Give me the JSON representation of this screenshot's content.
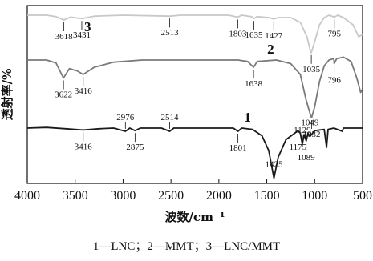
{
  "caption": "1—LNC；2—MMT；3—LNC/MMT",
  "chart_data": {
    "type": "line",
    "xlabel": "波数/cm⁻¹",
    "ylabel": "透射率/%",
    "xlim": [
      4000,
      500
    ],
    "x_ticks": [
      4000,
      3500,
      3000,
      2500,
      2000,
      1500,
      1000,
      500
    ],
    "colors": {
      "curve1": "#1a1a1a",
      "curve2": "#7a7a7a",
      "curve3": "#c8c8c8"
    },
    "series": [
      {
        "name": "1",
        "label_x": 1700,
        "baseline": 0.0,
        "points": [
          [
            4000,
            0.0
          ],
          [
            3800,
            0.01
          ],
          [
            3600,
            -0.01
          ],
          [
            3416,
            -0.03
          ],
          [
            3250,
            -0.01
          ],
          [
            3100,
            0.0
          ],
          [
            2976,
            -0.05
          ],
          [
            2930,
            0.0
          ],
          [
            2875,
            -0.04
          ],
          [
            2820,
            0.0
          ],
          [
            2600,
            0.0
          ],
          [
            2514,
            -0.05
          ],
          [
            2470,
            0.0
          ],
          [
            2000,
            0.0
          ],
          [
            1850,
            0.0
          ],
          [
            1801,
            -0.05
          ],
          [
            1760,
            0.0
          ],
          [
            1650,
            -0.02
          ],
          [
            1550,
            -0.12
          ],
          [
            1480,
            -0.35
          ],
          [
            1425,
            -0.78
          ],
          [
            1380,
            -0.45
          ],
          [
            1300,
            -0.18
          ],
          [
            1200,
            -0.07
          ],
          [
            1175,
            -0.04
          ],
          [
            1150,
            -0.08
          ],
          [
            1129,
            -0.25
          ],
          [
            1110,
            -0.1
          ],
          [
            1089,
            -0.2
          ],
          [
            1070,
            -0.08
          ],
          [
            1049,
            -0.13
          ],
          [
            1000,
            -0.04
          ],
          [
            900,
            -0.02
          ],
          [
            876,
            -0.3
          ],
          [
            860,
            -0.02
          ],
          [
            800,
            0.0
          ],
          [
            712,
            -0.05
          ],
          [
            700,
            0.0
          ],
          [
            600,
            0.0
          ],
          [
            500,
            0.0
          ]
        ],
        "annotations": [
          {
            "text": "3416",
            "x": 3416
          },
          {
            "text": "2976",
            "x": 2976
          },
          {
            "text": "2875",
            "x": 2875
          },
          {
            "text": "2514",
            "x": 2514
          },
          {
            "text": "1801",
            "x": 1801
          },
          {
            "text": "1425",
            "x": 1425
          },
          {
            "text": "1175",
            "x": 1175
          },
          {
            "text": "1129",
            "x": 1129
          },
          {
            "text": "1089",
            "x": 1089
          },
          {
            "text": "1049",
            "x": 1049
          }
        ]
      },
      {
        "name": "2",
        "label_x": 1460,
        "baseline": 0.0,
        "points": [
          [
            4000,
            0.0
          ],
          [
            3800,
            0.0
          ],
          [
            3700,
            -0.04
          ],
          [
            3622,
            -0.25
          ],
          [
            3560,
            -0.12
          ],
          [
            3480,
            -0.15
          ],
          [
            3416,
            -0.2
          ],
          [
            3300,
            -0.1
          ],
          [
            3100,
            -0.03
          ],
          [
            2800,
            0.0
          ],
          [
            2300,
            0.0
          ],
          [
            1800,
            0.0
          ],
          [
            1700,
            -0.02
          ],
          [
            1638,
            -0.1
          ],
          [
            1600,
            -0.02
          ],
          [
            1400,
            0.0
          ],
          [
            1250,
            -0.05
          ],
          [
            1150,
            -0.2
          ],
          [
            1090,
            -0.55
          ],
          [
            1040,
            -0.78
          ],
          [
            1032,
            -0.8
          ],
          [
            1000,
            -0.65
          ],
          [
            950,
            -0.3
          ],
          [
            900,
            -0.08
          ],
          [
            850,
            0.0
          ],
          [
            800,
            0.02
          ],
          [
            796,
            -0.05
          ],
          [
            770,
            0.02
          ],
          [
            700,
            0.04
          ],
          [
            620,
            -0.02
          ],
          [
            560,
            -0.25
          ],
          [
            520,
            -0.45
          ],
          [
            500,
            -0.4
          ]
        ],
        "annotations": [
          {
            "text": "3622",
            "x": 3622
          },
          {
            "text": "3416",
            "x": 3416
          },
          {
            "text": "1638",
            "x": 1638
          },
          {
            "text": "1032",
            "x": 1032
          },
          {
            "text": "796",
            "x": 796
          }
        ]
      },
      {
        "name": "3",
        "label_x": 3370,
        "baseline": 0.0,
        "points": [
          [
            4000,
            0.0
          ],
          [
            3800,
            0.0
          ],
          [
            3700,
            -0.03
          ],
          [
            3618,
            -0.1
          ],
          [
            3550,
            -0.04
          ],
          [
            3431,
            -0.07
          ],
          [
            3300,
            -0.02
          ],
          [
            3000,
            0.0
          ],
          [
            2513,
            -0.02
          ],
          [
            2400,
            0.0
          ],
          [
            1900,
            0.0
          ],
          [
            1803,
            -0.04
          ],
          [
            1760,
            0.0
          ],
          [
            1660,
            -0.03
          ],
          [
            1635,
            -0.07
          ],
          [
            1600,
            -0.03
          ],
          [
            1480,
            -0.05
          ],
          [
            1427,
            -0.08
          ],
          [
            1380,
            -0.05
          ],
          [
            1250,
            -0.05
          ],
          [
            1150,
            -0.15
          ],
          [
            1080,
            -0.45
          ],
          [
            1050,
            -0.7
          ],
          [
            1035,
            -0.78
          ],
          [
            1000,
            -0.55
          ],
          [
            950,
            -0.2
          ],
          [
            900,
            -0.05
          ],
          [
            850,
            0.0
          ],
          [
            795,
            -0.04
          ],
          [
            760,
            0.0
          ],
          [
            700,
            -0.05
          ],
          [
            600,
            -0.2
          ],
          [
            540,
            -0.45
          ],
          [
            500,
            -0.4
          ]
        ],
        "annotations": [
          {
            "text": "3618",
            "x": 3618
          },
          {
            "text": "3431",
            "x": 3431
          },
          {
            "text": "2513",
            "x": 2513
          },
          {
            "text": "1803",
            "x": 1803
          },
          {
            "text": "1635",
            "x": 1635
          },
          {
            "text": "1427",
            "x": 1427
          },
          {
            "text": "1035",
            "x": 1035
          },
          {
            "text": "795",
            "x": 795
          }
        ]
      }
    ]
  }
}
